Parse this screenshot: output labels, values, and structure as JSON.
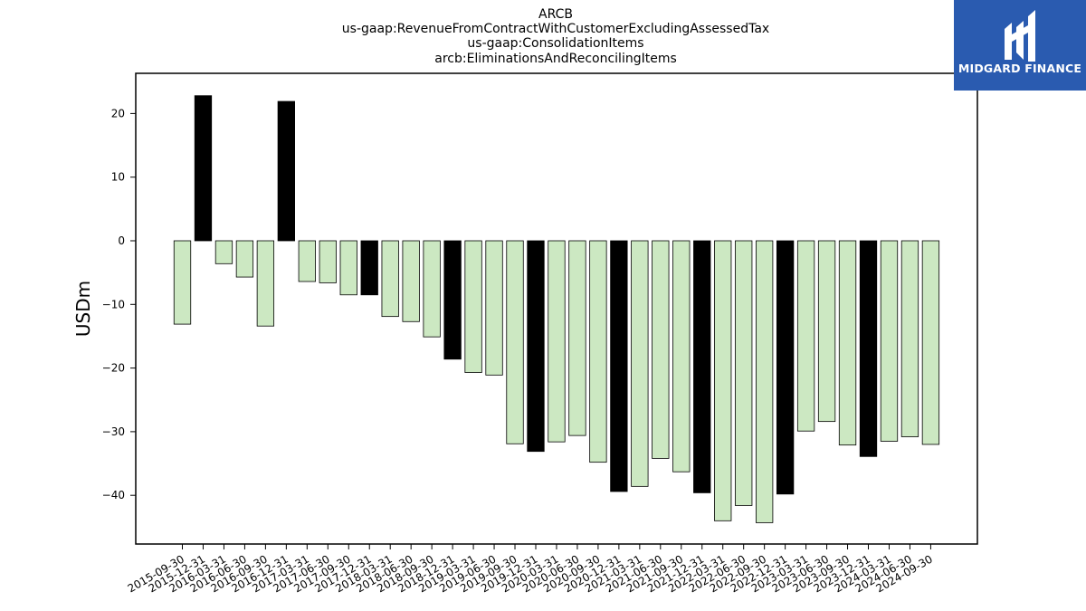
{
  "chart_data": {
    "type": "bar",
    "title": [
      "ARCB",
      "us-gaap:RevenueFromContractWithCustomerExcludingAssessedTax",
      "us-gaap:ConsolidationItems",
      "arcb:EliminationsAndReconcilingItems"
    ],
    "ylabel": "USDm",
    "xlabel": "",
    "ylim": [
      -47.5,
      26.3
    ],
    "yticks": [
      20,
      10,
      0,
      -10,
      -20,
      -30,
      -40
    ],
    "ytick_labels": [
      "20",
      "10",
      "0",
      "−10",
      "−20",
      "−30",
      "−40"
    ],
    "categories": [
      "2015-09-30",
      "2015-12-31",
      "2016-03-31",
      "2016-06-30",
      "2016-09-30",
      "2016-12-31",
      "2017-03-31",
      "2017-06-30",
      "2017-09-30",
      "2017-12-31",
      "2018-03-31",
      "2018-06-30",
      "2018-09-30",
      "2018-12-31",
      "2019-03-31",
      "2019-06-30",
      "2019-09-30",
      "2019-12-31",
      "2020-03-31",
      "2020-06-30",
      "2020-09-30",
      "2020-12-31",
      "2021-03-31",
      "2021-06-30",
      "2021-09-30",
      "2021-12-31",
      "2022-03-31",
      "2022-06-30",
      "2022-09-30",
      "2022-12-31",
      "2023-03-31",
      "2023-06-30",
      "2023-09-30",
      "2023-12-31",
      "2024-03-31",
      "2024-06-30",
      "2024-09-30"
    ],
    "values": [
      -13.1,
      22.8,
      -3.6,
      -5.7,
      -13.4,
      21.9,
      -6.4,
      -6.6,
      -8.5,
      -8.5,
      -11.9,
      -12.7,
      -15.1,
      -18.6,
      -20.7,
      -21.1,
      -31.9,
      -33.1,
      -31.6,
      -30.6,
      -34.8,
      -39.4,
      -38.6,
      -34.2,
      -36.3,
      -39.6,
      -44.0,
      -41.6,
      -44.3,
      -39.8,
      -29.9,
      -28.4,
      -32.1,
      -33.9,
      -31.5,
      -30.8,
      -32.0
    ],
    "highlight": [
      false,
      true,
      false,
      false,
      false,
      true,
      false,
      false,
      false,
      true,
      false,
      false,
      false,
      true,
      false,
      false,
      false,
      true,
      false,
      false,
      false,
      true,
      false,
      false,
      false,
      true,
      false,
      false,
      false,
      true,
      false,
      false,
      false,
      true,
      false,
      false,
      false
    ],
    "colors": {
      "normal": "#cce8c2",
      "highlight": "#000000",
      "edge": "#000000"
    },
    "grid": false,
    "legend": "none"
  },
  "logo": {
    "text": "MIDGARD FINANCE",
    "background": "#2a5bb0"
  }
}
